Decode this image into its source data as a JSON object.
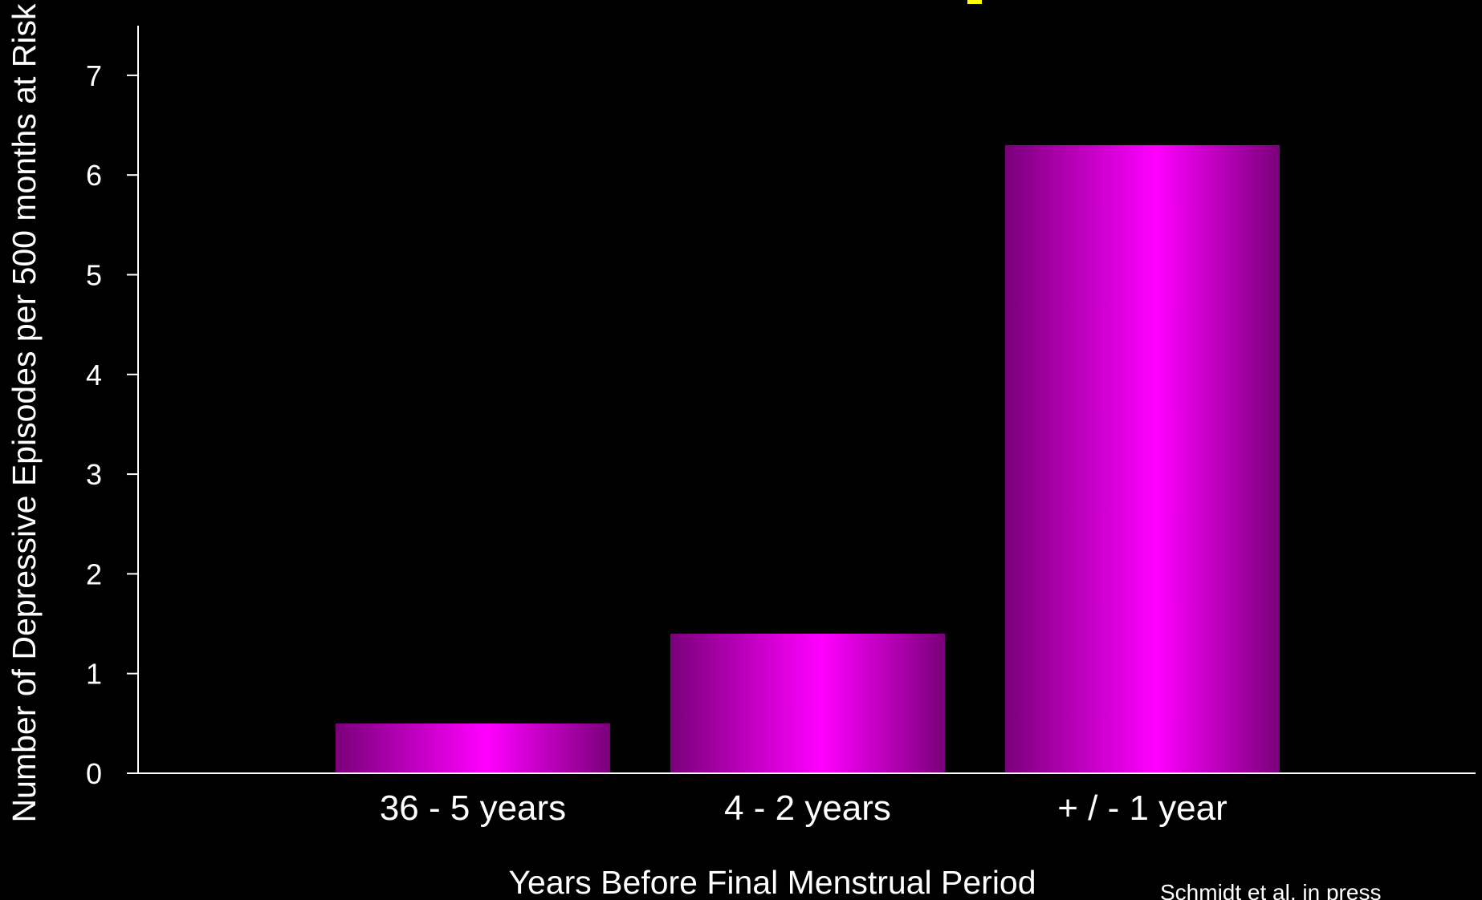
{
  "chart_data": {
    "type": "bar",
    "categories": [
      "36 - 5 years",
      "4 - 2 years",
      "+ / - 1 year"
    ],
    "values": [
      0.5,
      1.4,
      6.3
    ],
    "xlabel": "Years Before Final Menstrual Period",
    "ylabel": "Number of Depressive Episodes per 500 months at Risk",
    "ylim": [
      0,
      7.5
    ],
    "yticks": [
      "0",
      "1",
      "2",
      "3",
      "4",
      "5",
      "6",
      "7"
    ],
    "grid": false,
    "legend": "none"
  },
  "source_note": "Schmidt et al, in press",
  "colors": {
    "background": "#000000",
    "bar_center": "#ff00ff",
    "bar_edge": "#7a007a",
    "axis": "#ffffff",
    "text": "#ffffff",
    "title_fragment": "#ffff00"
  }
}
